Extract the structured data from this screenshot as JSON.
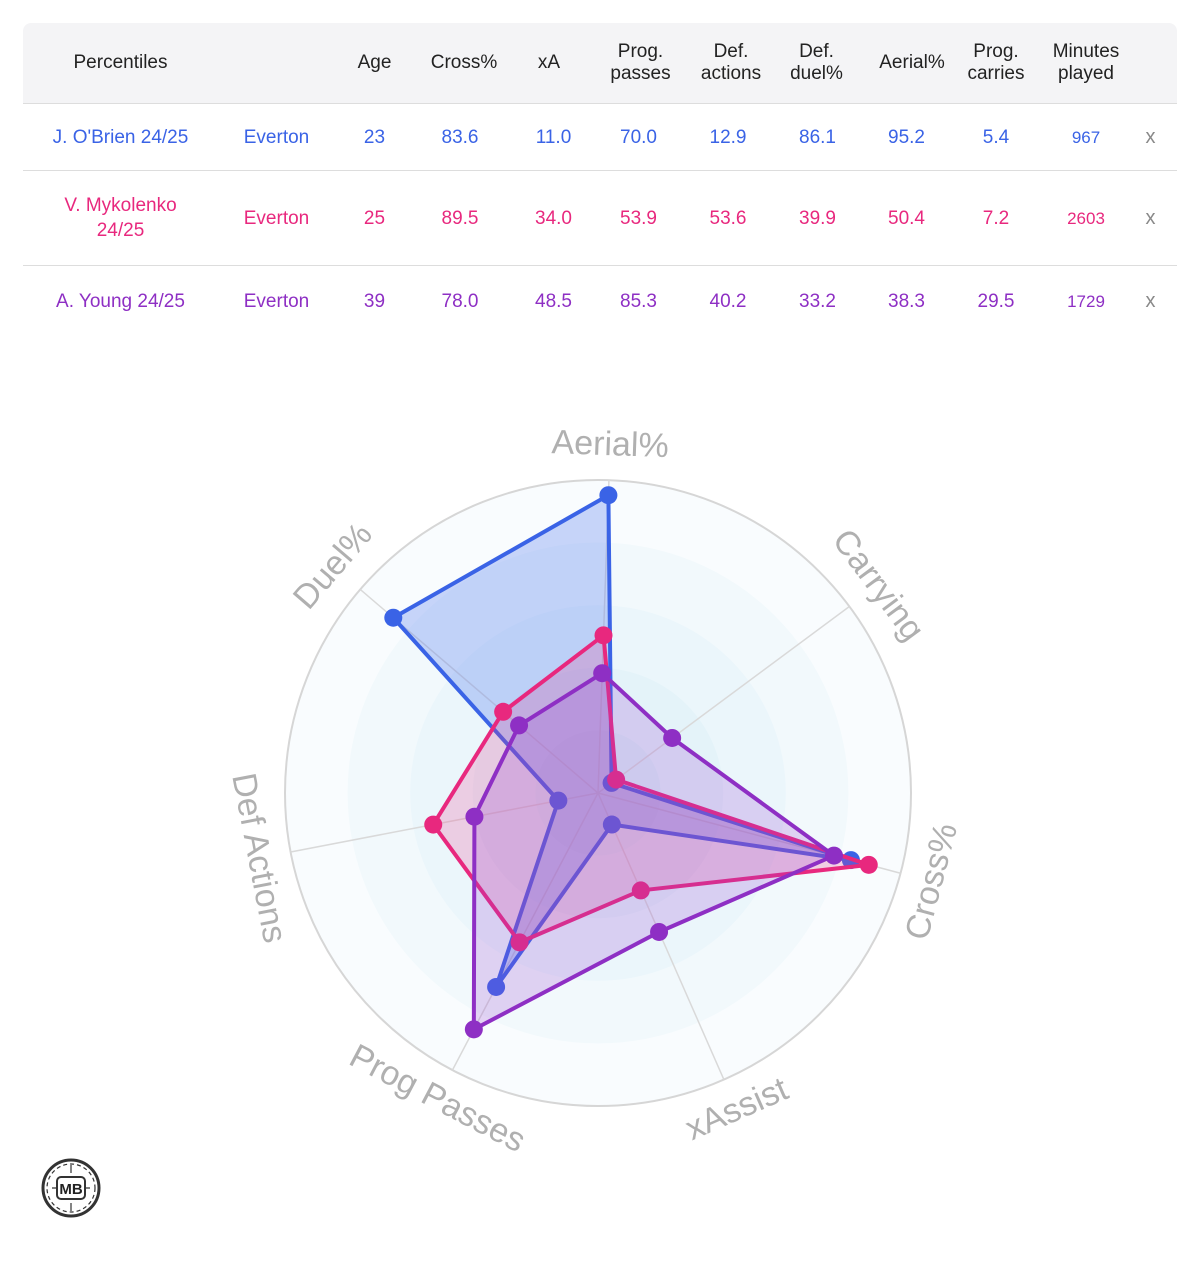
{
  "table": {
    "headers": {
      "percentiles": "Percentiles",
      "team": "",
      "age": "Age",
      "cross": "Cross%",
      "xa": "xA",
      "prog_passes": "Prog.\npasses",
      "def_actions": "Def.\nactions",
      "def_duel": "Def.\nduel%",
      "aerial": "Aerial%",
      "prog_carries": "Prog.\ncarries",
      "minutes": "Minutes\nplayed"
    },
    "rows": [
      {
        "player": "J. O'Brien 24/25",
        "team": "Everton",
        "age": "23",
        "cross": "83.6",
        "xa": "11.0",
        "prog_passes": "70.0",
        "def_actions": "12.9",
        "def_duel": "86.1",
        "aerial": "95.2",
        "prog_carries": "5.4",
        "minutes": "967",
        "remove": "x",
        "color": "#3a63e6"
      },
      {
        "player": "V. Mykolenko 24/25",
        "team": "Everton",
        "age": "25",
        "cross": "89.5",
        "xa": "34.0",
        "prog_passes": "53.9",
        "def_actions": "53.6",
        "def_duel": "39.9",
        "aerial": "50.4",
        "prog_carries": "7.2",
        "minutes": "2603",
        "remove": "x",
        "color": "#e8287e"
      },
      {
        "player": "A. Young 24/25",
        "team": "Everton",
        "age": "39",
        "cross": "78.0",
        "xa": "48.5",
        "prog_passes": "85.3",
        "def_actions": "40.2",
        "def_duel": "33.2",
        "aerial": "38.3",
        "prog_carries": "29.5",
        "minutes": "1729",
        "remove": "x",
        "color": "#8e2fc4"
      }
    ]
  },
  "chart_data": {
    "type": "radar",
    "axes": [
      "Aerial%",
      "Carrying",
      "Cross%",
      "xAssist",
      "Prog Passes",
      "Def Actions",
      "Duel%"
    ],
    "range": [
      0,
      100
    ],
    "grid": true,
    "series": [
      {
        "name": "J. O'Brien 24/25",
        "color": "#3a63e6",
        "fill": "rgba(80,120,240,0.30)",
        "values": [
          95.2,
          5.4,
          83.6,
          11.0,
          70.0,
          12.9,
          86.1
        ]
      },
      {
        "name": "V. Mykolenko 24/25",
        "color": "#e8287e",
        "fill": "rgba(236,60,140,0.22)",
        "values": [
          50.4,
          7.2,
          89.5,
          34.0,
          53.9,
          53.6,
          39.9
        ]
      },
      {
        "name": "A. Young 24/25",
        "color": "#8e2fc4",
        "fill": "rgba(150,70,210,0.22)",
        "values": [
          38.3,
          29.5,
          78.0,
          48.5,
          85.3,
          40.2,
          33.2
        ]
      }
    ]
  },
  "logo": {
    "text": "MB"
  }
}
